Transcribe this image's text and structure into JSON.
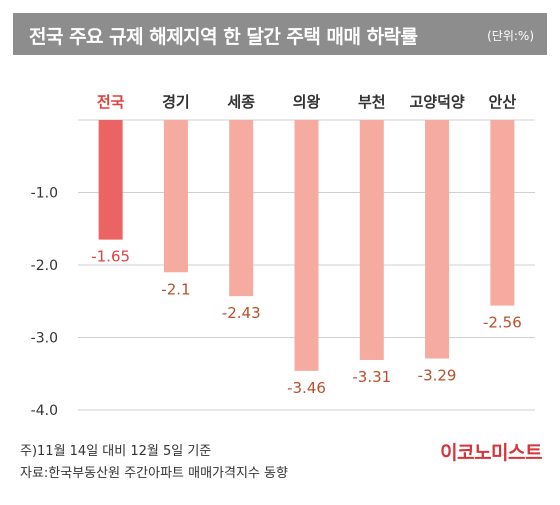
{
  "header": {
    "title": "전국 주요 규제 해제지역 한 달간 주택 매매 하락률",
    "unit": "(단위:%)"
  },
  "chart_data": {
    "type": "bar",
    "categories": [
      "전국",
      "경기",
      "세종",
      "의왕",
      "부천",
      "고양덕양",
      "안산"
    ],
    "values": [
      -1.65,
      -2.1,
      -2.43,
      -3.46,
      -3.31,
      -3.29,
      -2.56
    ],
    "value_labels": [
      "-1.65",
      "-2.1",
      "-2.43",
      "-3.46",
      "-3.31",
      "-3.29",
      "-2.56"
    ],
    "y_ticks": [
      "-1.0",
      "-2.0",
      "-3.0",
      "-4.0"
    ],
    "y_tick_values": [
      -1,
      -2,
      -3,
      -4
    ],
    "ylim": [
      -4,
      0
    ],
    "highlight_category": "전국",
    "colors": {
      "highlight_bar": "#e96462",
      "bar": "#f5aba0",
      "highlight_label": "#e0413f",
      "label": "#b6512c",
      "axis_text": "#333333",
      "grid": "#d0d0d0"
    },
    "grid": true
  },
  "footer": {
    "note": "주)11월 14일 대비 12월 5일 기준",
    "source": "자료:한국부동산원 주간아파트 매매가격지수 동향",
    "brand": "이코노미스트"
  }
}
